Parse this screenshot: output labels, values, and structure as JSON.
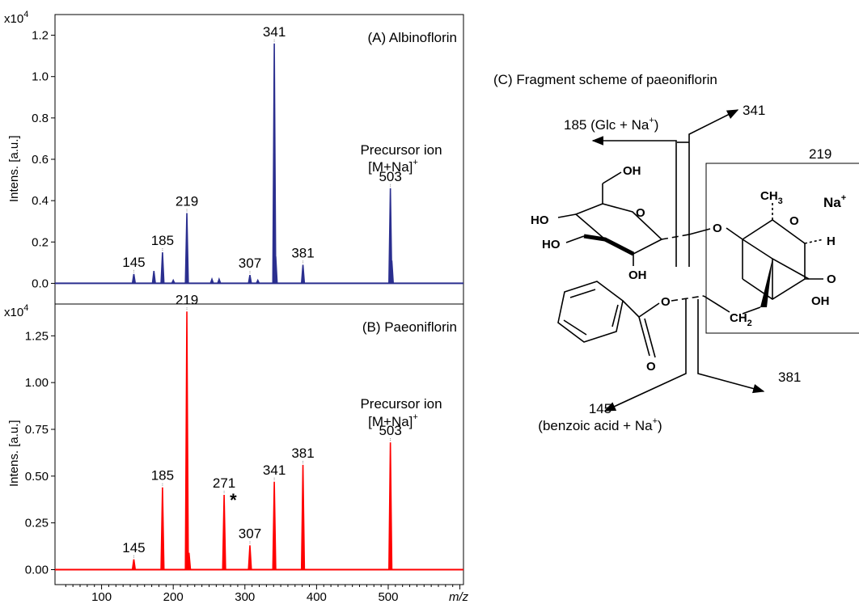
{
  "chart_data": [
    {
      "type": "line",
      "panel": "A",
      "title": "(A) Albinoflorin",
      "ylabel": "Intens. [a.u.]",
      "y_multiplier": "x10",
      "y_multiplier_exp": "4",
      "xlim": [
        35,
        605
      ],
      "ylim": [
        -0.1,
        1.3
      ],
      "y_ticks": [
        "0.0",
        "0.2",
        "0.4",
        "0.6",
        "0.8",
        "1.0",
        "1.2"
      ],
      "color": "#2b2f8f",
      "peaks": [
        {
          "x": 145,
          "y": 0.045
        },
        {
          "x": 173,
          "y": 0.06
        },
        {
          "x": 185,
          "y": 0.15
        },
        {
          "x": 200,
          "y": 0.015
        },
        {
          "x": 219,
          "y": 0.34
        },
        {
          "x": 254,
          "y": 0.02
        },
        {
          "x": 264,
          "y": 0.02
        },
        {
          "x": 307,
          "y": 0.04
        },
        {
          "x": 318,
          "y": 0.015
        },
        {
          "x": 341,
          "y": 1.16
        },
        {
          "x": 343,
          "y": 0.13
        },
        {
          "x": 381,
          "y": 0.09
        },
        {
          "x": 503,
          "y": 0.46
        },
        {
          "x": 505,
          "y": 0.11
        }
      ],
      "peak_labels": [
        {
          "x": 145,
          "y": 0.045,
          "text": "145"
        },
        {
          "x": 185,
          "y": 0.15,
          "text": "185"
        },
        {
          "x": 219,
          "y": 0.34,
          "text": "219"
        },
        {
          "x": 307,
          "y": 0.04,
          "text": "307"
        },
        {
          "x": 341,
          "y": 1.16,
          "text": "341"
        },
        {
          "x": 381,
          "y": 0.09,
          "text": "381"
        },
        {
          "x": 503,
          "y": 0.46,
          "text": "503"
        }
      ],
      "precursor_label": [
        "Precursor ion",
        "[M+Na]",
        "+"
      ]
    },
    {
      "type": "line",
      "panel": "B",
      "title": "(B) Paeoniflorin",
      "ylabel": "Intens. [a.u.]",
      "xlabel": "m/z",
      "y_multiplier": "x10",
      "y_multiplier_exp": "4",
      "xlim": [
        35,
        605
      ],
      "ylim": [
        -0.08,
        1.42
      ],
      "y_ticks": [
        "0.00",
        "0.25",
        "0.50",
        "0.75",
        "1.00",
        "1.25"
      ],
      "x_ticks": [
        "100",
        "200",
        "300",
        "400",
        "500"
      ],
      "color": "#ff0000",
      "peaks": [
        {
          "x": 145,
          "y": 0.055
        },
        {
          "x": 185,
          "y": 0.44
        },
        {
          "x": 219,
          "y": 1.38
        },
        {
          "x": 222,
          "y": 0.09
        },
        {
          "x": 271,
          "y": 0.4
        },
        {
          "x": 307,
          "y": 0.13
        },
        {
          "x": 341,
          "y": 0.47
        },
        {
          "x": 381,
          "y": 0.56
        },
        {
          "x": 503,
          "y": 0.68
        }
      ],
      "peak_labels": [
        {
          "x": 145,
          "y": 0.055,
          "text": "145"
        },
        {
          "x": 185,
          "y": 0.44,
          "text": "185"
        },
        {
          "x": 219,
          "y": 1.38,
          "text": "219"
        },
        {
          "x": 271,
          "y": 0.4,
          "text": "271"
        },
        {
          "x": 307,
          "y": 0.13,
          "text": "307"
        },
        {
          "x": 341,
          "y": 0.47,
          "text": "341"
        },
        {
          "x": 381,
          "y": 0.56,
          "text": "381"
        },
        {
          "x": 503,
          "y": 0.68,
          "text": "503"
        }
      ],
      "asterisk": "*",
      "precursor_label": [
        "Precursor ion",
        "[M+Na]",
        "+"
      ]
    }
  ],
  "scheme": {
    "title": "(C)  Fragment scheme of paeoniflorin",
    "frag_185": "185 (Glc + Na",
    "frag_185_sup": "+",
    "frag_185_close": ")",
    "frag_341": "341",
    "frag_219": "219",
    "frag_381": "381",
    "frag_145": "145",
    "frag_145_sub": "(benzoic acid + Na",
    "frag_145_sup": "+",
    "frag_145_close": ")",
    "na_label": "Na",
    "na_sup": "+",
    "atoms": {
      "oh_top": "OH",
      "ho_left": "HO",
      "ho_low": "HO",
      "oh_bottom": "OH",
      "o_ring": "O",
      "o_link": "O",
      "ch3": "CH",
      "ch3_sub": "3",
      "o_right": "O",
      "h": "H",
      "o_epox": "O",
      "oh_right": "OH",
      "ch2": "CH",
      "ch2_sub": "2",
      "o_ester": "O",
      "o_carbonyl": "O"
    }
  }
}
